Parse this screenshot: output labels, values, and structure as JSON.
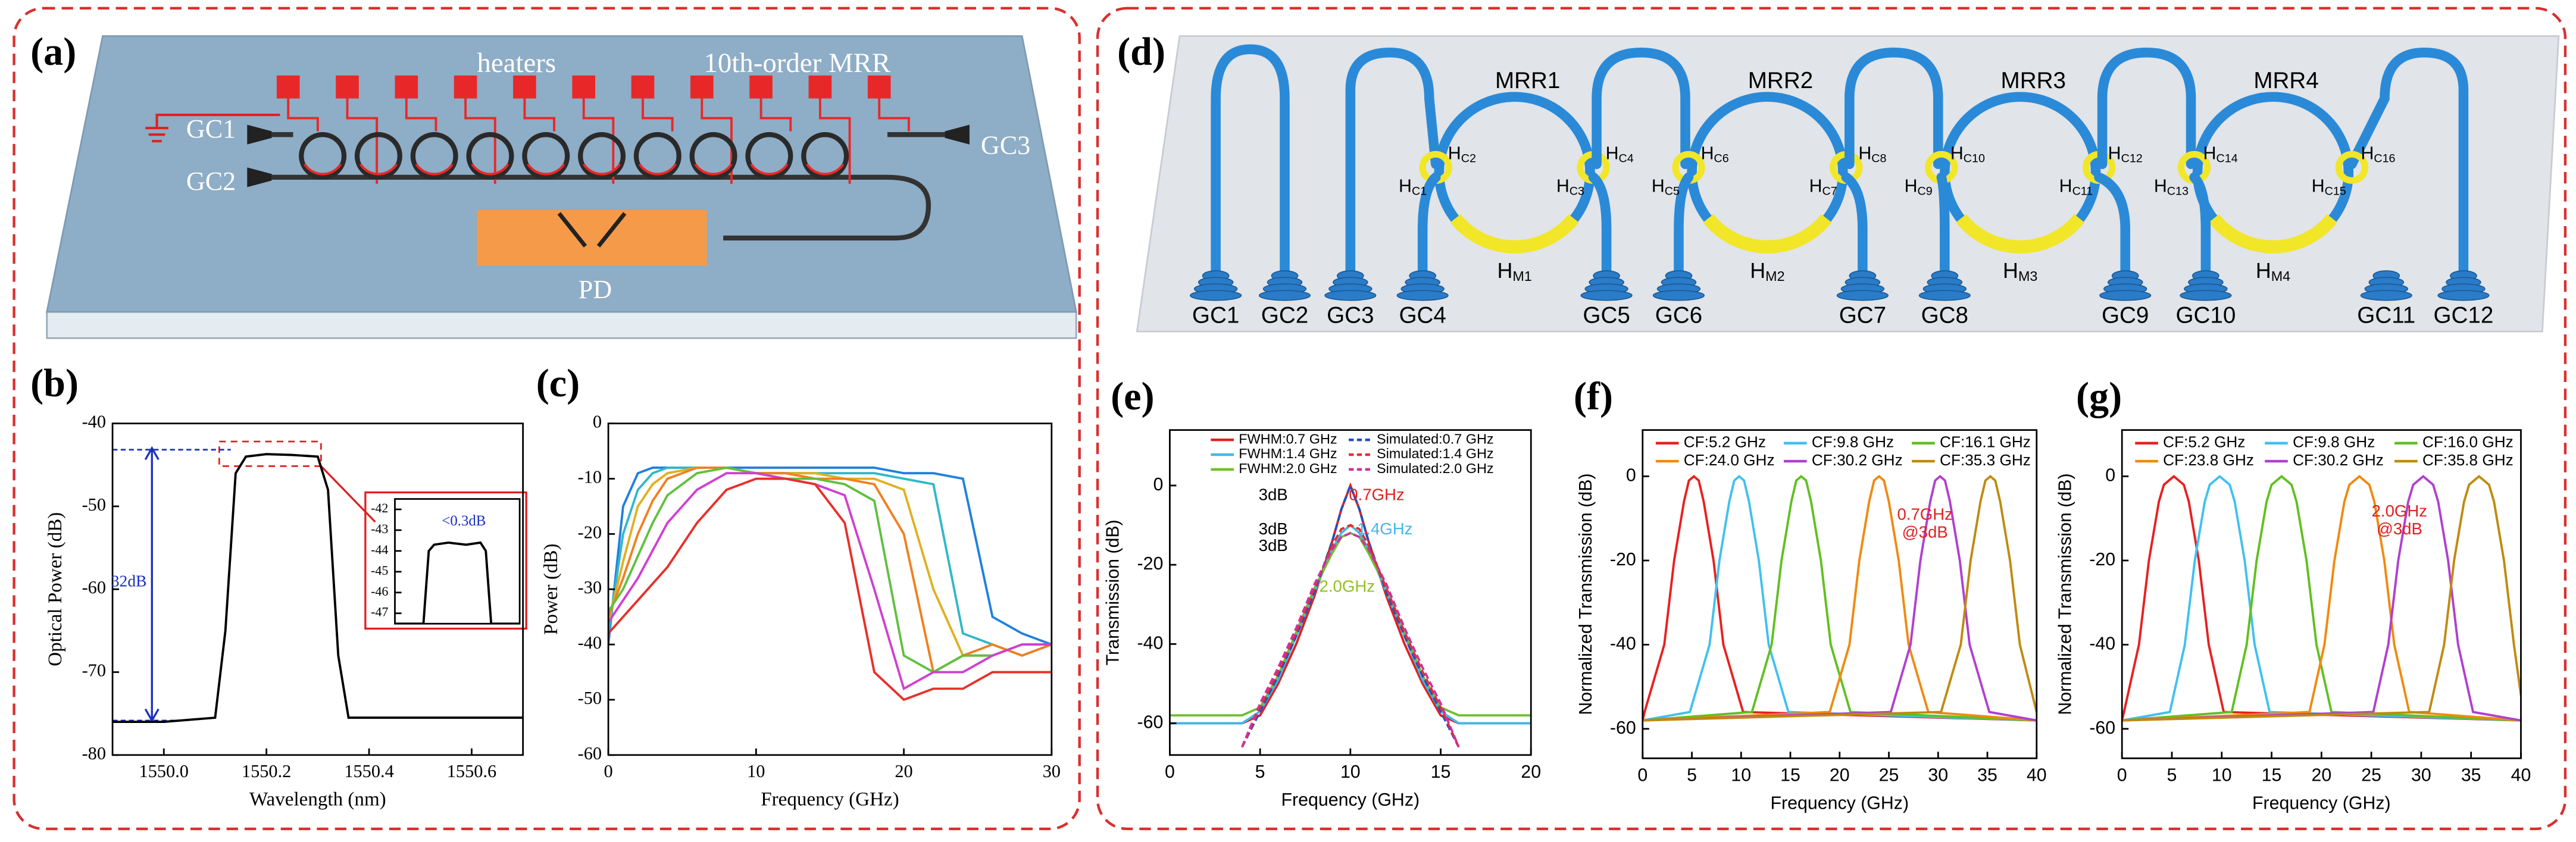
{
  "panels": [
    "(a)",
    "(b)",
    "(c)",
    "(d)",
    "(e)",
    "(f)",
    "(g)"
  ],
  "diagram_a": {
    "labels": [
      "heaters",
      "10th-order MRR",
      "GC1",
      "GC2",
      "GC3",
      "PD"
    ]
  },
  "diagram_d": {
    "rings": [
      "MRR1",
      "MRR2",
      "MRR3",
      "MRR4"
    ],
    "coupler_heaters": [
      {
        "base": "H",
        "sub": "C1"
      },
      {
        "base": "H",
        "sub": "C2"
      },
      {
        "base": "H",
        "sub": "C3"
      },
      {
        "base": "H",
        "sub": "C4"
      },
      {
        "base": "H",
        "sub": "C5"
      },
      {
        "base": "H",
        "sub": "C6"
      },
      {
        "base": "H",
        "sub": "C7"
      },
      {
        "base": "H",
        "sub": "C8"
      },
      {
        "base": "H",
        "sub": "C9"
      },
      {
        "base": "H",
        "sub": "C10"
      },
      {
        "base": "H",
        "sub": "C11"
      },
      {
        "base": "H",
        "sub": "C12"
      },
      {
        "base": "H",
        "sub": "C13"
      },
      {
        "base": "H",
        "sub": "C14"
      },
      {
        "base": "H",
        "sub": "C15"
      },
      {
        "base": "H",
        "sub": "C16"
      }
    ],
    "ring_heaters": [
      {
        "base": "H",
        "sub": "M1"
      },
      {
        "base": "H",
        "sub": "M2"
      },
      {
        "base": "H",
        "sub": "M3"
      },
      {
        "base": "H",
        "sub": "M4"
      }
    ],
    "couplers": [
      "GC1",
      "GC2",
      "GC3",
      "GC4",
      "GC5",
      "GC6",
      "GC7",
      "GC8",
      "GC9",
      "GC10",
      "GC11",
      "GC12"
    ]
  },
  "chart_data": [
    {
      "type": "line",
      "xlabel": "Wavelength (nm)",
      "ylabel": "Optical Power (dB)",
      "xlim": [
        1549.9,
        1550.7
      ],
      "ylim": [
        -80,
        -40
      ],
      "xticks": [
        {
          "value": 1550,
          "label": "1550.0"
        },
        {
          "value": 1550.2,
          "label": "1550.2"
        },
        {
          "value": 1550.4,
          "label": "1550.4"
        },
        {
          "value": 1550.6,
          "label": "1550.6"
        }
      ],
      "yticks": [
        -40,
        -50,
        -60,
        -70,
        -80
      ],
      "x": [
        1549.9,
        1550,
        1550.1,
        1550.12,
        1550.14,
        1550.16,
        1550.2,
        1550.25,
        1550.3,
        1550.32,
        1550.34,
        1550.36,
        1550.5,
        1550.7
      ],
      "series": [
        {
          "color": "#000000",
          "values": [
            -76,
            -76,
            -75.5,
            -65,
            -46,
            -44,
            -43.7,
            -43.8,
            -44,
            -48,
            -68,
            -75.5,
            -75.5,
            -75.5
          ]
        }
      ],
      "annotations": [
        {
          "text": "32dB",
          "color": "#1a2fc0"
        }
      ]
    },
    {
      "type": "line",
      "xlim": [
        1550.05,
        1550.4
      ],
      "ylim": [
        -47.5,
        -41.5
      ],
      "yticks": [
        -42,
        -43,
        -44,
        -45,
        -46,
        -47
      ],
      "x": [
        1550.05,
        1550.13,
        1550.145,
        1550.16,
        1550.2,
        1550.25,
        1550.29,
        1550.305,
        1550.32,
        1550.4
      ],
      "series": [
        {
          "color": "#000000",
          "values": [
            -47.5,
            -47.5,
            -44,
            -43.7,
            -43.6,
            -43.7,
            -43.6,
            -44,
            -47.5,
            -47.5
          ]
        }
      ],
      "annotations": [
        {
          "text": "<0.3dB",
          "color": "#1a2fc0"
        }
      ]
    },
    {
      "type": "line",
      "xlabel": "Frequency (GHz)",
      "ylabel": "Power (dB)",
      "xlim": [
        0,
        30
      ],
      "ylim": [
        -60,
        0
      ],
      "xticks": [
        0,
        10,
        20,
        30
      ],
      "yticks": [
        0,
        -10,
        -20,
        -30,
        -40,
        -50,
        -60
      ],
      "x": [
        0,
        1,
        2,
        3,
        4,
        6,
        8,
        10,
        12,
        14,
        16,
        18,
        20,
        22,
        24,
        26,
        28,
        30
      ],
      "series": [
        {
          "color": "#2080e0",
          "values": [
            -40,
            -15,
            -9,
            -8,
            -8,
            -8,
            -8,
            -8,
            -8,
            -8,
            -8,
            -8,
            -9,
            -9,
            -10,
            -35,
            -38,
            -40
          ]
        },
        {
          "color": "#30b8c8",
          "values": [
            -38,
            -20,
            -12,
            -9,
            -8,
            -8,
            -8,
            -9,
            -9,
            -9,
            -9,
            -9,
            -10,
            -11,
            -38,
            -40,
            -42,
            -40
          ]
        },
        {
          "color": "#e0b020",
          "values": [
            -36,
            -25,
            -15,
            -11,
            -9,
            -8,
            -8,
            -9,
            -9,
            -9,
            -10,
            -10,
            -12,
            -30,
            -42,
            -42,
            -40,
            -40
          ]
        },
        {
          "color": "#f08020",
          "values": [
            -35,
            -28,
            -20,
            -14,
            -10,
            -8,
            -8,
            -9,
            -9,
            -10,
            -10,
            -11,
            -20,
            -45,
            -42,
            -40,
            -42,
            -40
          ]
        },
        {
          "color": "#60c040",
          "values": [
            -34,
            -30,
            -24,
            -18,
            -13,
            -9,
            -8,
            -9,
            -10,
            -10,
            -11,
            -14,
            -42,
            -45,
            -42,
            -42,
            -40,
            -40
          ]
        },
        {
          "color": "#d040d0",
          "values": [
            -36,
            -32,
            -28,
            -23,
            -18,
            -12,
            -9,
            -9,
            -10,
            -11,
            -13,
            -30,
            -48,
            -45,
            -45,
            -42,
            -40,
            -40
          ]
        },
        {
          "color": "#e8302a",
          "values": [
            -38,
            -35,
            -32,
            -29,
            -26,
            -18,
            -12,
            -10,
            -10,
            -11,
            -18,
            -45,
            -50,
            -48,
            -48,
            -45,
            -45,
            -45
          ]
        }
      ]
    },
    {
      "type": "line",
      "xlabel": "Frequency (GHz)",
      "ylabel": "Transmission (dB)",
      "xlim": [
        0,
        20
      ],
      "ylim": [
        -68,
        14
      ],
      "xticks": [
        0,
        5,
        10,
        15,
        20
      ],
      "yticks": [
        0,
        -20,
        -40,
        -60
      ],
      "x": [
        0,
        2,
        4,
        5,
        6,
        7,
        8,
        9,
        9.5,
        10,
        10.5,
        11,
        12,
        13,
        14,
        15,
        16,
        18,
        20
      ],
      "series": [
        {
          "name": "FWHM:0.7 GHz",
          "color": "#e02020",
          "values": [
            -60,
            -60,
            -60,
            -58,
            -50,
            -40,
            -28,
            -14,
            -6,
            0,
            -6,
            -14,
            -28,
            -40,
            -50,
            -58,
            -60,
            -60,
            -60
          ]
        },
        {
          "name": "FWHM:1.4 GHz",
          "color": "#40b8e8",
          "values": [
            -60,
            -60,
            -60,
            -57,
            -49,
            -38,
            -27,
            -16,
            -12,
            -10,
            -12,
            -16,
            -27,
            -38,
            -49,
            -57,
            -60,
            -60,
            -60
          ]
        },
        {
          "name": "FWHM:2.0 GHz",
          "color": "#70c030",
          "values": [
            -58,
            -58,
            -58,
            -56,
            -48,
            -37,
            -26,
            -17,
            -13,
            -12,
            -13,
            -17,
            -26,
            -37,
            -48,
            -56,
            -58,
            -58,
            -58
          ]
        },
        {
          "name": "Simulated:0.7 GHz",
          "color": "#2050c0",
          "dash": true,
          "values": [
            null,
            null,
            -66,
            -57,
            -48,
            -38,
            -27,
            -14,
            -6,
            0,
            -6,
            -14,
            -27,
            -38,
            -48,
            -57,
            -66,
            null,
            null
          ]
        },
        {
          "name": "Simulated:1.4 GHz",
          "color": "#e03030",
          "dash": true,
          "values": [
            null,
            null,
            -66,
            -56,
            -47,
            -37,
            -26,
            -15,
            -11,
            -10,
            -11,
            -15,
            -26,
            -37,
            -47,
            -56,
            -66,
            null,
            null
          ]
        },
        {
          "name": "Simulated:2.0 GHz",
          "color": "#d030a0",
          "dash": true,
          "values": [
            null,
            null,
            -66,
            -55,
            -46,
            -36,
            -25,
            -16,
            -13,
            -12,
            -13,
            -16,
            -25,
            -36,
            -46,
            -55,
            -66,
            null,
            null
          ]
        }
      ],
      "annotations": [
        {
          "text": "3dB",
          "color": "#000000"
        },
        {
          "text": "3dB",
          "color": "#000000"
        },
        {
          "text": "3dB",
          "color": "#000000"
        },
        {
          "text": "0.7GHz",
          "color": "#e02020"
        },
        {
          "text": "1.4GHz",
          "color": "#40b8e8"
        },
        {
          "text": "2.0GHz",
          "color": "#90c020"
        }
      ]
    },
    {
      "type": "line",
      "xlabel": "Frequency (GHz)",
      "ylabel": "Normalized Transmission (dB)",
      "xlim": [
        0,
        40
      ],
      "ylim": [
        -67,
        11
      ],
      "xticks": [
        0,
        5,
        10,
        15,
        20,
        25,
        30,
        35,
        40
      ],
      "yticks": [
        0,
        -20,
        -40,
        -60
      ],
      "series": [
        {
          "name": "CF:5.2 GHz",
          "color": "#e82020",
          "x": [
            0,
            0.2,
            2.2,
            3.2,
            4.2,
            4.7,
            5.2,
            5.7,
            6.2,
            7.2,
            8.2,
            10.2,
            40
          ],
          "values": [
            -58,
            -56,
            -40,
            -20,
            -6,
            -1,
            0,
            -1,
            -6,
            -20,
            -40,
            -56,
            -58
          ]
        },
        {
          "name": "CF:9.8 GHz",
          "color": "#40c0f0",
          "x": [
            0,
            4.8,
            6.8,
            7.8,
            8.8,
            9.3,
            9.8,
            10.3,
            10.8,
            11.8,
            12.8,
            14.8,
            40
          ],
          "values": [
            -58,
            -56,
            -40,
            -20,
            -6,
            -1,
            0,
            -1,
            -6,
            -20,
            -40,
            -56,
            -58
          ]
        },
        {
          "name": "CF:16.1 GHz",
          "color": "#60c020",
          "x": [
            0,
            11.1,
            13.1,
            14.1,
            15.1,
            15.6,
            16.1,
            16.6,
            17.1,
            18.1,
            19.1,
            21.1,
            40
          ],
          "values": [
            -58,
            -56,
            -40,
            -20,
            -6,
            -1,
            0,
            -1,
            -6,
            -20,
            -40,
            -56,
            -58
          ]
        },
        {
          "name": "CF:24.0 GHz",
          "color": "#f08a10",
          "x": [
            0,
            19,
            21,
            22,
            23,
            23.5,
            24,
            24.5,
            25,
            26,
            27,
            29,
            40
          ],
          "values": [
            -58,
            -56,
            -40,
            -20,
            -6,
            -1,
            0,
            -1,
            -6,
            -20,
            -40,
            -56,
            -58
          ]
        },
        {
          "name": "CF:30.2 GHz",
          "color": "#b040d0",
          "x": [
            0,
            25.2,
            27.2,
            28.2,
            29.2,
            29.7,
            30.2,
            30.7,
            31.2,
            32.2,
            33.2,
            35.2,
            40
          ],
          "values": [
            -58,
            -56,
            -40,
            -20,
            -6,
            -1,
            0,
            -1,
            -6,
            -20,
            -40,
            -56,
            -58
          ]
        },
        {
          "name": "CF:35.3 GHz",
          "color": "#c08a10",
          "x": [
            0,
            30.3,
            32.3,
            33.3,
            34.3,
            34.8,
            35.3,
            35.8,
            36.3,
            37.3,
            38.3,
            40
          ],
          "values": [
            -58,
            -56,
            -40,
            -20,
            -6,
            -1,
            0,
            -1,
            -6,
            -20,
            -40,
            -56
          ]
        }
      ],
      "annotations": [
        {
          "text": "0.7GHz",
          "color": "#e02020"
        },
        {
          "text": "@3dB",
          "color": "#e02020"
        }
      ]
    },
    {
      "type": "line",
      "xlabel": "Frequency (GHz)",
      "ylabel": "Normalized Transmission (dB)",
      "xlim": [
        0,
        40
      ],
      "ylim": [
        -67,
        11
      ],
      "xticks": [
        0,
        5,
        10,
        15,
        20,
        25,
        30,
        35,
        40
      ],
      "yticks": [
        0,
        -20,
        -40,
        -60
      ],
      "series": [
        {
          "name": "CF:5.2 GHz",
          "color": "#e82020",
          "x": [
            0,
            0.2,
            1.7,
            2.7,
            3.7,
            4.2,
            5.2,
            6.2,
            6.7,
            7.7,
            8.7,
            10.2,
            40
          ],
          "values": [
            -58,
            -56,
            -40,
            -20,
            -6,
            -2,
            0,
            -2,
            -6,
            -20,
            -40,
            -56,
            -58
          ]
        },
        {
          "name": "CF:9.8 GHz",
          "color": "#40c0f0",
          "x": [
            0,
            4.8,
            6.3,
            7.3,
            8.3,
            8.8,
            9.8,
            10.8,
            11.3,
            12.3,
            13.3,
            14.8,
            40
          ],
          "values": [
            -58,
            -56,
            -40,
            -20,
            -6,
            -2,
            0,
            -2,
            -6,
            -20,
            -40,
            -56,
            -58
          ]
        },
        {
          "name": "CF:16.0 GHz",
          "color": "#60c020",
          "x": [
            0,
            11,
            12.5,
            13.5,
            14.5,
            15,
            16,
            17,
            17.5,
            18.5,
            19.5,
            21,
            40
          ],
          "values": [
            -58,
            -56,
            -40,
            -20,
            -6,
            -2,
            0,
            -2,
            -6,
            -20,
            -40,
            -56,
            -58
          ]
        },
        {
          "name": "CF:23.8 GHz",
          "color": "#f08a10",
          "x": [
            0,
            18.8,
            20.3,
            21.3,
            22.3,
            22.8,
            23.8,
            24.8,
            25.3,
            26.3,
            27.3,
            28.8,
            40
          ],
          "values": [
            -58,
            -56,
            -40,
            -20,
            -6,
            -2,
            0,
            -2,
            -6,
            -20,
            -40,
            -56,
            -58
          ]
        },
        {
          "name": "CF:30.2 GHz",
          "color": "#b040d0",
          "x": [
            0,
            25.2,
            26.7,
            27.7,
            28.7,
            29.2,
            30.2,
            31.2,
            31.7,
            32.7,
            33.7,
            35.2,
            40
          ],
          "values": [
            -58,
            -56,
            -40,
            -20,
            -6,
            -2,
            0,
            -2,
            -6,
            -20,
            -40,
            -56,
            -58
          ]
        },
        {
          "name": "CF:35.8 GHz",
          "color": "#c08a10",
          "x": [
            0,
            30.8,
            32.3,
            33.3,
            34.3,
            34.8,
            35.8,
            36.8,
            37.3,
            38.3,
            39.3,
            40
          ],
          "values": [
            -58,
            -56,
            -40,
            -20,
            -6,
            -2,
            0,
            -2,
            -6,
            -20,
            -40,
            -52
          ]
        }
      ],
      "annotations": [
        {
          "text": "2.0GHz",
          "color": "#e02020"
        },
        {
          "text": "@3dB",
          "color": "#e02020"
        }
      ]
    }
  ]
}
